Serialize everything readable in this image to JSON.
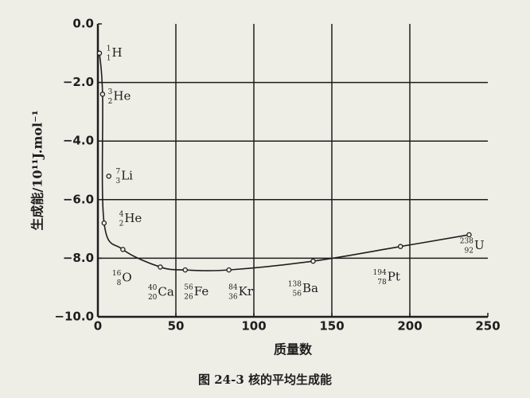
{
  "chart_data": {
    "type": "line",
    "caption": "图 24-3  核的平均生成能",
    "x_label": "质量数",
    "y_label": "生成能/10¹¹J.mol⁻¹",
    "xlim": [
      0,
      250
    ],
    "ylim": [
      -10,
      0
    ],
    "xticks": [
      0,
      50,
      100,
      150,
      200,
      250
    ],
    "yticks": [
      {
        "value": 0,
        "label": "0.0"
      },
      {
        "value": -2,
        "label": "−2.0"
      },
      {
        "value": -4,
        "label": "−4.0"
      },
      {
        "value": -6,
        "label": "−6.0"
      },
      {
        "value": -8,
        "label": "−8.0"
      },
      {
        "value": -10,
        "label": "−10.0"
      }
    ],
    "grid": true,
    "color": "#1e1e1e",
    "points": [
      {
        "mass": "1",
        "z": "1",
        "symbol": "H",
        "x": 1,
        "y": -1.0,
        "on_curve": true
      },
      {
        "mass": "3",
        "z": "2",
        "symbol": "He",
        "x": 3,
        "y": -2.4,
        "on_curve": true
      },
      {
        "mass": "4",
        "z": "2",
        "symbol": "He",
        "x": 4,
        "y": -6.8,
        "on_curve": true
      },
      {
        "mass": "7",
        "z": "3",
        "symbol": "Li",
        "x": 7,
        "y": -5.2,
        "on_curve": false
      },
      {
        "mass": "16",
        "z": "8",
        "symbol": "O",
        "x": 16,
        "y": -7.7,
        "on_curve": true
      },
      {
        "mass": "40",
        "z": "20",
        "symbol": "Ca",
        "x": 40,
        "y": -8.3,
        "on_curve": true
      },
      {
        "mass": "56",
        "z": "26",
        "symbol": "Fe",
        "x": 56,
        "y": -8.4,
        "on_curve": true
      },
      {
        "mass": "84",
        "z": "36",
        "symbol": "Kr",
        "x": 84,
        "y": -8.4,
        "on_curve": true
      },
      {
        "mass": "138",
        "z": "56",
        "symbol": "Ba",
        "x": 138,
        "y": -8.1,
        "on_curve": true
      },
      {
        "mass": "194",
        "z": "78",
        "symbol": "Pt",
        "x": 194,
        "y": -7.6,
        "on_curve": true
      },
      {
        "mass": "238",
        "z": "92",
        "symbol": "U",
        "x": 238,
        "y": -7.2,
        "on_curve": true
      }
    ]
  }
}
